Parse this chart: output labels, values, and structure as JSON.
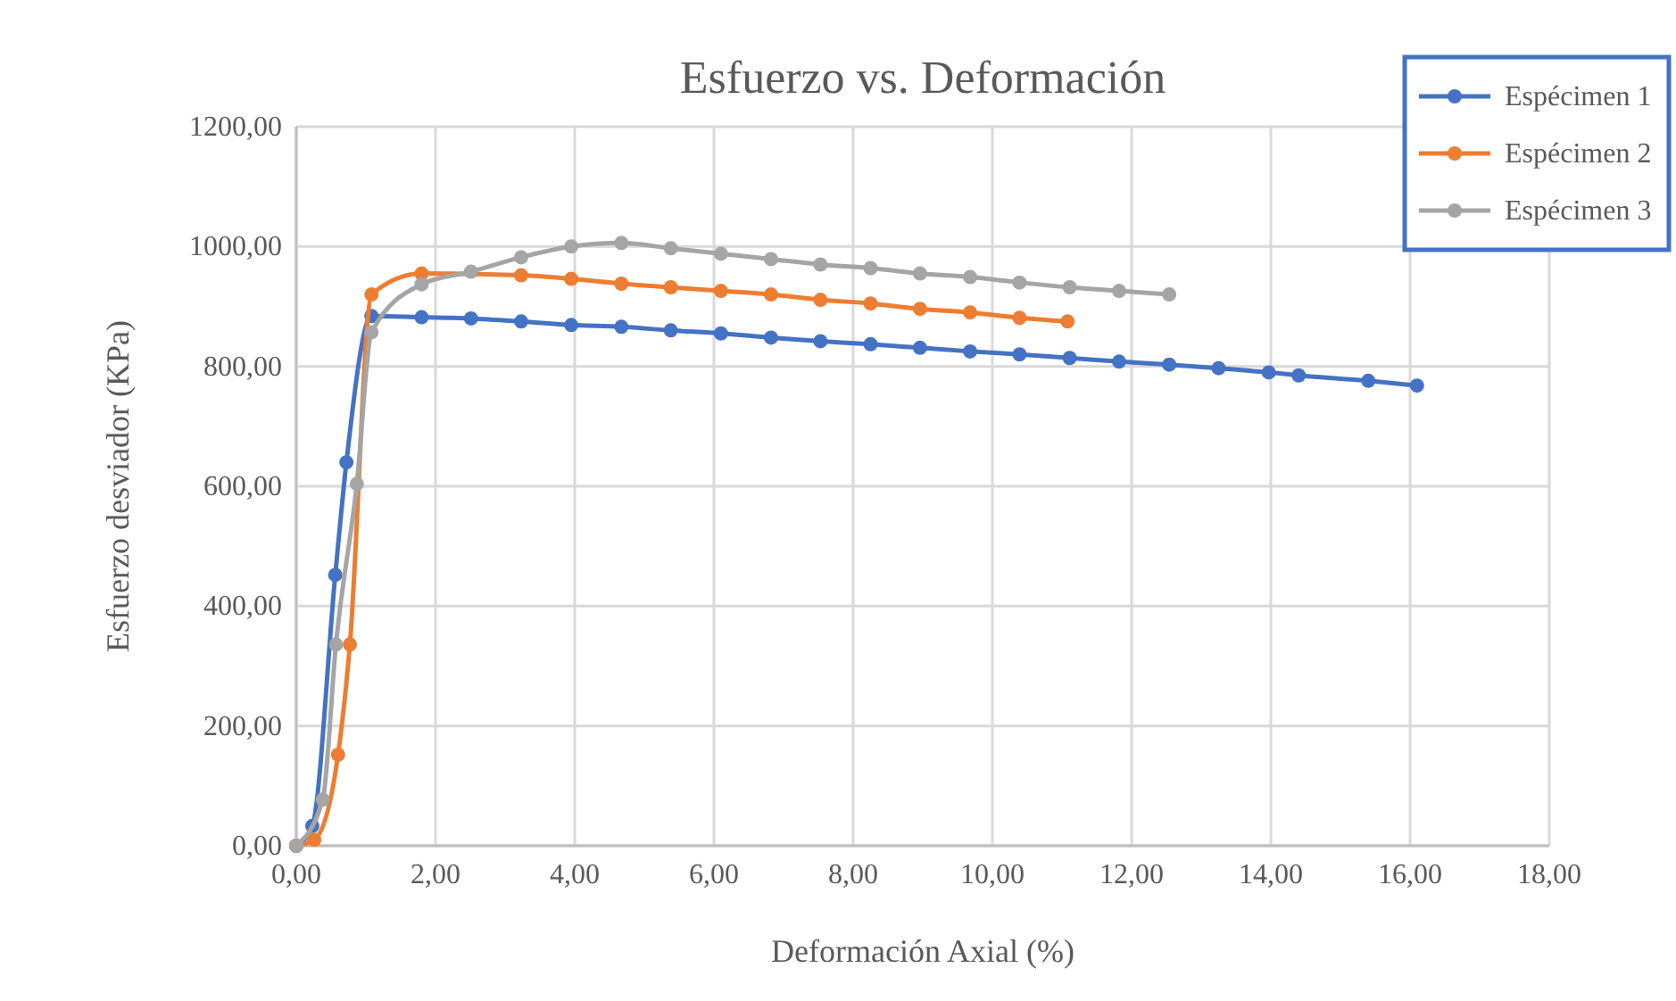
{
  "chart_data": {
    "type": "line",
    "title": "Esfuerzo vs. Deformación",
    "xlabel": "Deformación Axial (%)",
    "ylabel": "Esfuerzo desviador (KPa)",
    "xlim": [
      0,
      18
    ],
    "ylim": [
      0,
      1200
    ],
    "xticks": [
      {
        "value": 0,
        "label": "0,00"
      },
      {
        "value": 2,
        "label": "2,00"
      },
      {
        "value": 4,
        "label": "4,00"
      },
      {
        "value": 6,
        "label": "6,00"
      },
      {
        "value": 8,
        "label": "8,00"
      },
      {
        "value": 10,
        "label": "10,00"
      },
      {
        "value": 12,
        "label": "12,00"
      },
      {
        "value": 14,
        "label": "14,00"
      },
      {
        "value": 16,
        "label": "16,00"
      },
      {
        "value": 18,
        "label": "18,00"
      }
    ],
    "yticks": [
      {
        "value": 0,
        "label": "0,00"
      },
      {
        "value": 200,
        "label": "200,00"
      },
      {
        "value": 400,
        "label": "400,00"
      },
      {
        "value": 600,
        "label": "600,00"
      },
      {
        "value": 800,
        "label": "800,00"
      },
      {
        "value": 1000,
        "label": "1000,00"
      },
      {
        "value": 1200,
        "label": "1200,00"
      }
    ],
    "grid": true,
    "legend": "top right",
    "marker": "circle",
    "line_style": "solid",
    "series": [
      {
        "name": "Espécimen 1",
        "color": "#4472c4",
        "x": [
          0,
          0.23,
          0.56,
          0.72,
          1.08,
          1.8,
          2.51,
          3.23,
          3.95,
          4.67,
          5.38,
          6.1,
          6.82,
          7.53,
          8.25,
          8.96,
          9.68,
          10.39,
          11.11,
          11.82,
          12.54,
          13.25,
          13.97,
          14.4,
          15.4,
          16.1
        ],
        "values": [
          0,
          33,
          452,
          640,
          884,
          882,
          880,
          875,
          869,
          866,
          860,
          855,
          848,
          842,
          837,
          831,
          825,
          820,
          814,
          808,
          803,
          797,
          790,
          785,
          776,
          768
        ]
      },
      {
        "name": "Espécimen 2",
        "color": "#ed7d31",
        "x": [
          0,
          0.26,
          0.6,
          0.77,
          1.08,
          1.8,
          2.51,
          3.23,
          3.95,
          4.67,
          5.38,
          6.1,
          6.82,
          7.53,
          8.25,
          8.96,
          9.68,
          10.39,
          11.08
        ],
        "values": [
          0,
          10,
          152,
          336,
          920,
          955,
          null,
          952,
          946,
          938,
          932,
          926,
          920,
          911,
          905,
          896,
          890,
          881,
          875
        ]
      },
      {
        "name": "Espécimen 3",
        "color": "#a5a5a5",
        "x": [
          0,
          0.38,
          0.57,
          0.87,
          1.08,
          1.8,
          2.51,
          3.23,
          3.95,
          4.67,
          5.38,
          6.1,
          6.82,
          7.53,
          8.25,
          8.96,
          9.68,
          10.39,
          11.11,
          11.82,
          12.54
        ],
        "values": [
          0,
          77,
          336,
          604,
          857,
          937,
          958,
          982,
          1000,
          1006,
          997,
          988,
          979,
          970,
          964,
          955,
          949,
          940,
          932,
          926,
          920
        ]
      }
    ]
  }
}
